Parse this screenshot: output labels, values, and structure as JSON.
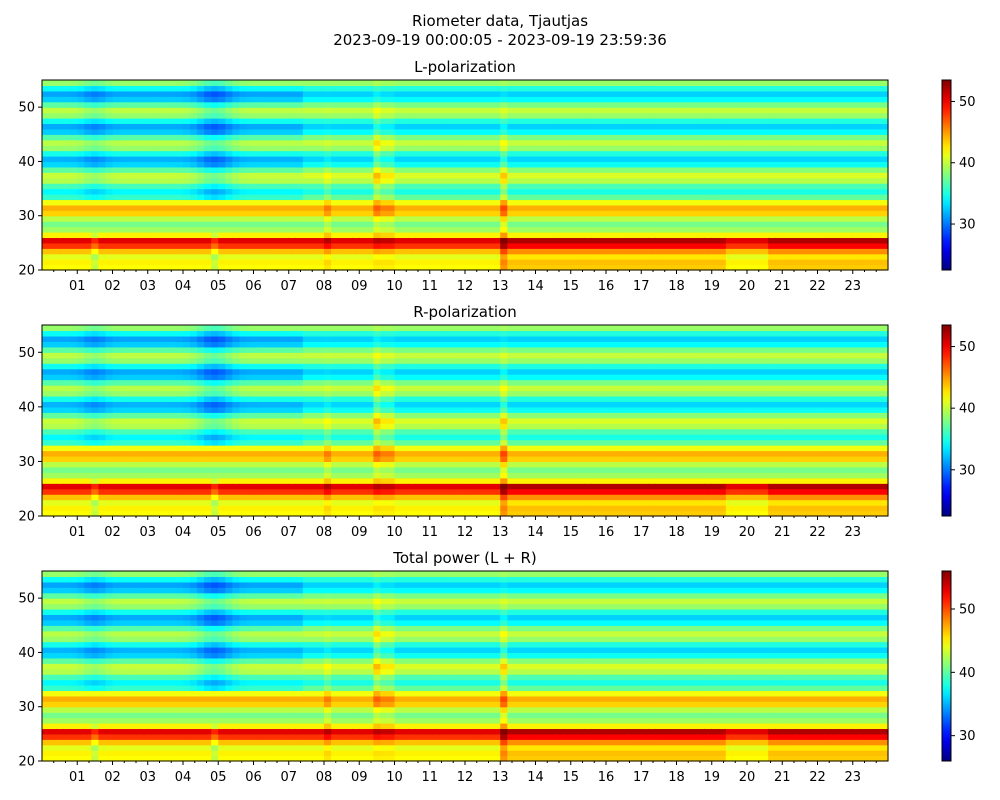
{
  "figure": {
    "title_line1": "Riometer data, Tjautjas",
    "title_line2": "2023-09-19 00:00:05 - 2023-09-19 23:59:36"
  },
  "colormap": "jet",
  "chart_data": [
    {
      "type": "heatmap",
      "title": "L-polarization",
      "x_ticks": [
        "01",
        "02",
        "03",
        "04",
        "05",
        "06",
        "07",
        "08",
        "09",
        "10",
        "11",
        "12",
        "13",
        "14",
        "15",
        "16",
        "17",
        "18",
        "19",
        "20",
        "21",
        "22",
        "23"
      ],
      "xlim_hours": [
        0,
        24
      ],
      "ylim": [
        20,
        55
      ],
      "y_ticks": [
        20,
        30,
        40,
        50
      ],
      "colorbar_range": [
        22.5,
        53.5
      ],
      "colorbar_ticks": [
        30,
        40,
        50
      ]
    },
    {
      "type": "heatmap",
      "title": "R-polarization",
      "x_ticks": [
        "01",
        "02",
        "03",
        "04",
        "05",
        "06",
        "07",
        "08",
        "09",
        "10",
        "11",
        "12",
        "13",
        "14",
        "15",
        "16",
        "17",
        "18",
        "19",
        "20",
        "21",
        "22",
        "23"
      ],
      "xlim_hours": [
        0,
        24
      ],
      "ylim": [
        20,
        55
      ],
      "y_ticks": [
        20,
        30,
        40,
        50
      ],
      "colorbar_range": [
        22.5,
        53.5
      ],
      "colorbar_ticks": [
        30,
        40,
        50
      ]
    },
    {
      "type": "heatmap",
      "title": "Total power (L + R)",
      "x_ticks": [
        "01",
        "02",
        "03",
        "04",
        "05",
        "06",
        "07",
        "08",
        "09",
        "10",
        "11",
        "12",
        "13",
        "14",
        "15",
        "16",
        "17",
        "18",
        "19",
        "20",
        "21",
        "22",
        "23"
      ],
      "xlim_hours": [
        0,
        24
      ],
      "ylim": [
        20,
        55
      ],
      "y_ticks": [
        20,
        30,
        40,
        50
      ],
      "colorbar_range": [
        26,
        56
      ],
      "colorbar_ticks": [
        30,
        40,
        50
      ]
    }
  ]
}
